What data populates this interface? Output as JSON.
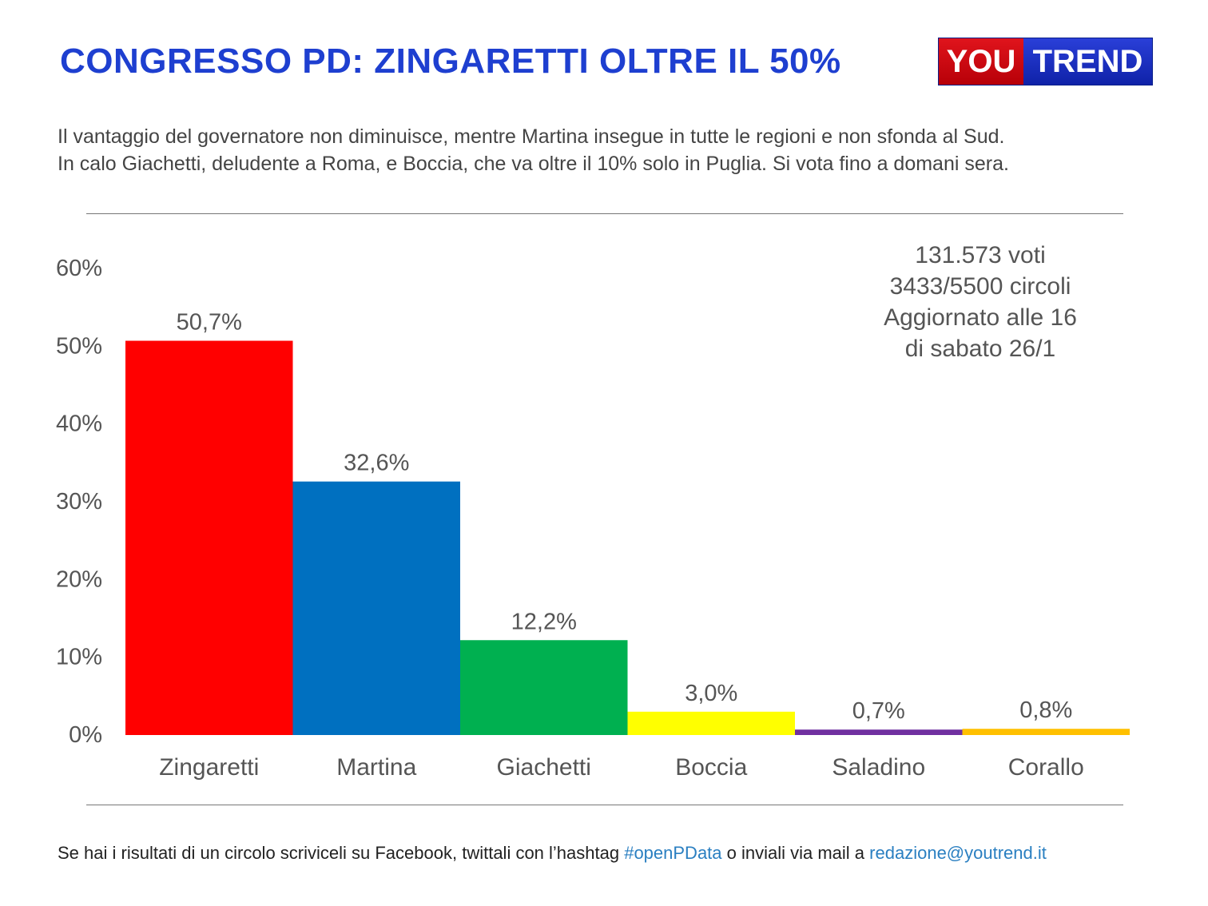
{
  "title": "CONGRESSO PD: ZINGARETTI OLTRE IL 50%",
  "logo": {
    "part1": "YOU",
    "part2": "TREND"
  },
  "subtitle": [
    "Il vantaggio del governatore non diminuisce, mentre Martina insegue in tutte le regioni e non sfonda al Sud.",
    "In calo Giachetti, deludente a Roma, e Boccia, che va oltre il 10% solo in Puglia. Si vota fino a domani sera."
  ],
  "info": [
    "131.573 voti",
    "3433/5500 circoli",
    "Aggiornato alle 16",
    "di sabato 26/1"
  ],
  "footer": {
    "text1": "Se hai i risultati di un circolo scriviceli su Facebook, twittali con l’hashtag ",
    "hashtag": "#openPData",
    "text2": " o inviali via mail a ",
    "email": "redazione@youtrend.it"
  },
  "chart_data": {
    "type": "bar",
    "categories": [
      "Zingaretti",
      "Martina",
      "Giachetti",
      "Boccia",
      "Saladino",
      "Corallo"
    ],
    "values": [
      50.7,
      32.6,
      12.2,
      3.0,
      0.7,
      0.8
    ],
    "value_labels": [
      "50,7%",
      "32,6%",
      "12,2%",
      "3,0%",
      "0,7%",
      "0,8%"
    ],
    "colors": [
      "#ff0000",
      "#0070c0",
      "#00b050",
      "#ffff00",
      "#7030a0",
      "#ffc000"
    ],
    "ylim": [
      0,
      60
    ],
    "yticks": [
      0,
      10,
      20,
      30,
      40,
      50,
      60
    ],
    "ytick_labels": [
      "0%",
      "10%",
      "20%",
      "30%",
      "40%",
      "50%",
      "60%"
    ],
    "grid": false,
    "legend": "none"
  }
}
